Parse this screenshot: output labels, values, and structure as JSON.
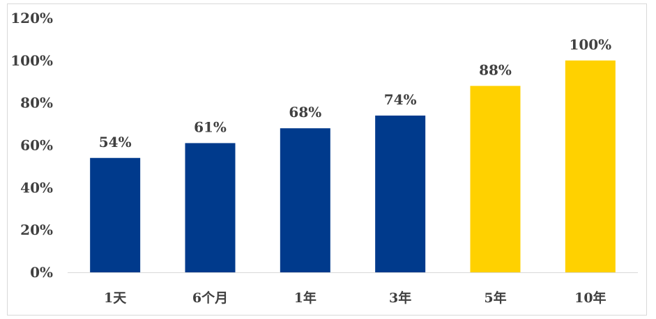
{
  "chart_data": {
    "type": "bar",
    "categories": [
      "1天",
      "6个月",
      "1年",
      "3年",
      "5年",
      "10年"
    ],
    "values": [
      54,
      61,
      68,
      74,
      88,
      100
    ],
    "data_labels": [
      "54%",
      "61%",
      "68%",
      "74%",
      "88%",
      "100%"
    ],
    "colors": [
      "#003A8C",
      "#003A8C",
      "#003A8C",
      "#003A8C",
      "#FFD100",
      "#FFD100"
    ],
    "ylim": [
      0,
      120
    ],
    "yticks": [
      0,
      20,
      40,
      60,
      80,
      100,
      120
    ],
    "ytick_labels": [
      "0%",
      "20%",
      "40%",
      "60%",
      "80%",
      "100%",
      "120%"
    ],
    "title": "",
    "xlabel": "",
    "ylabel": "",
    "grid": false,
    "legend": "none"
  }
}
